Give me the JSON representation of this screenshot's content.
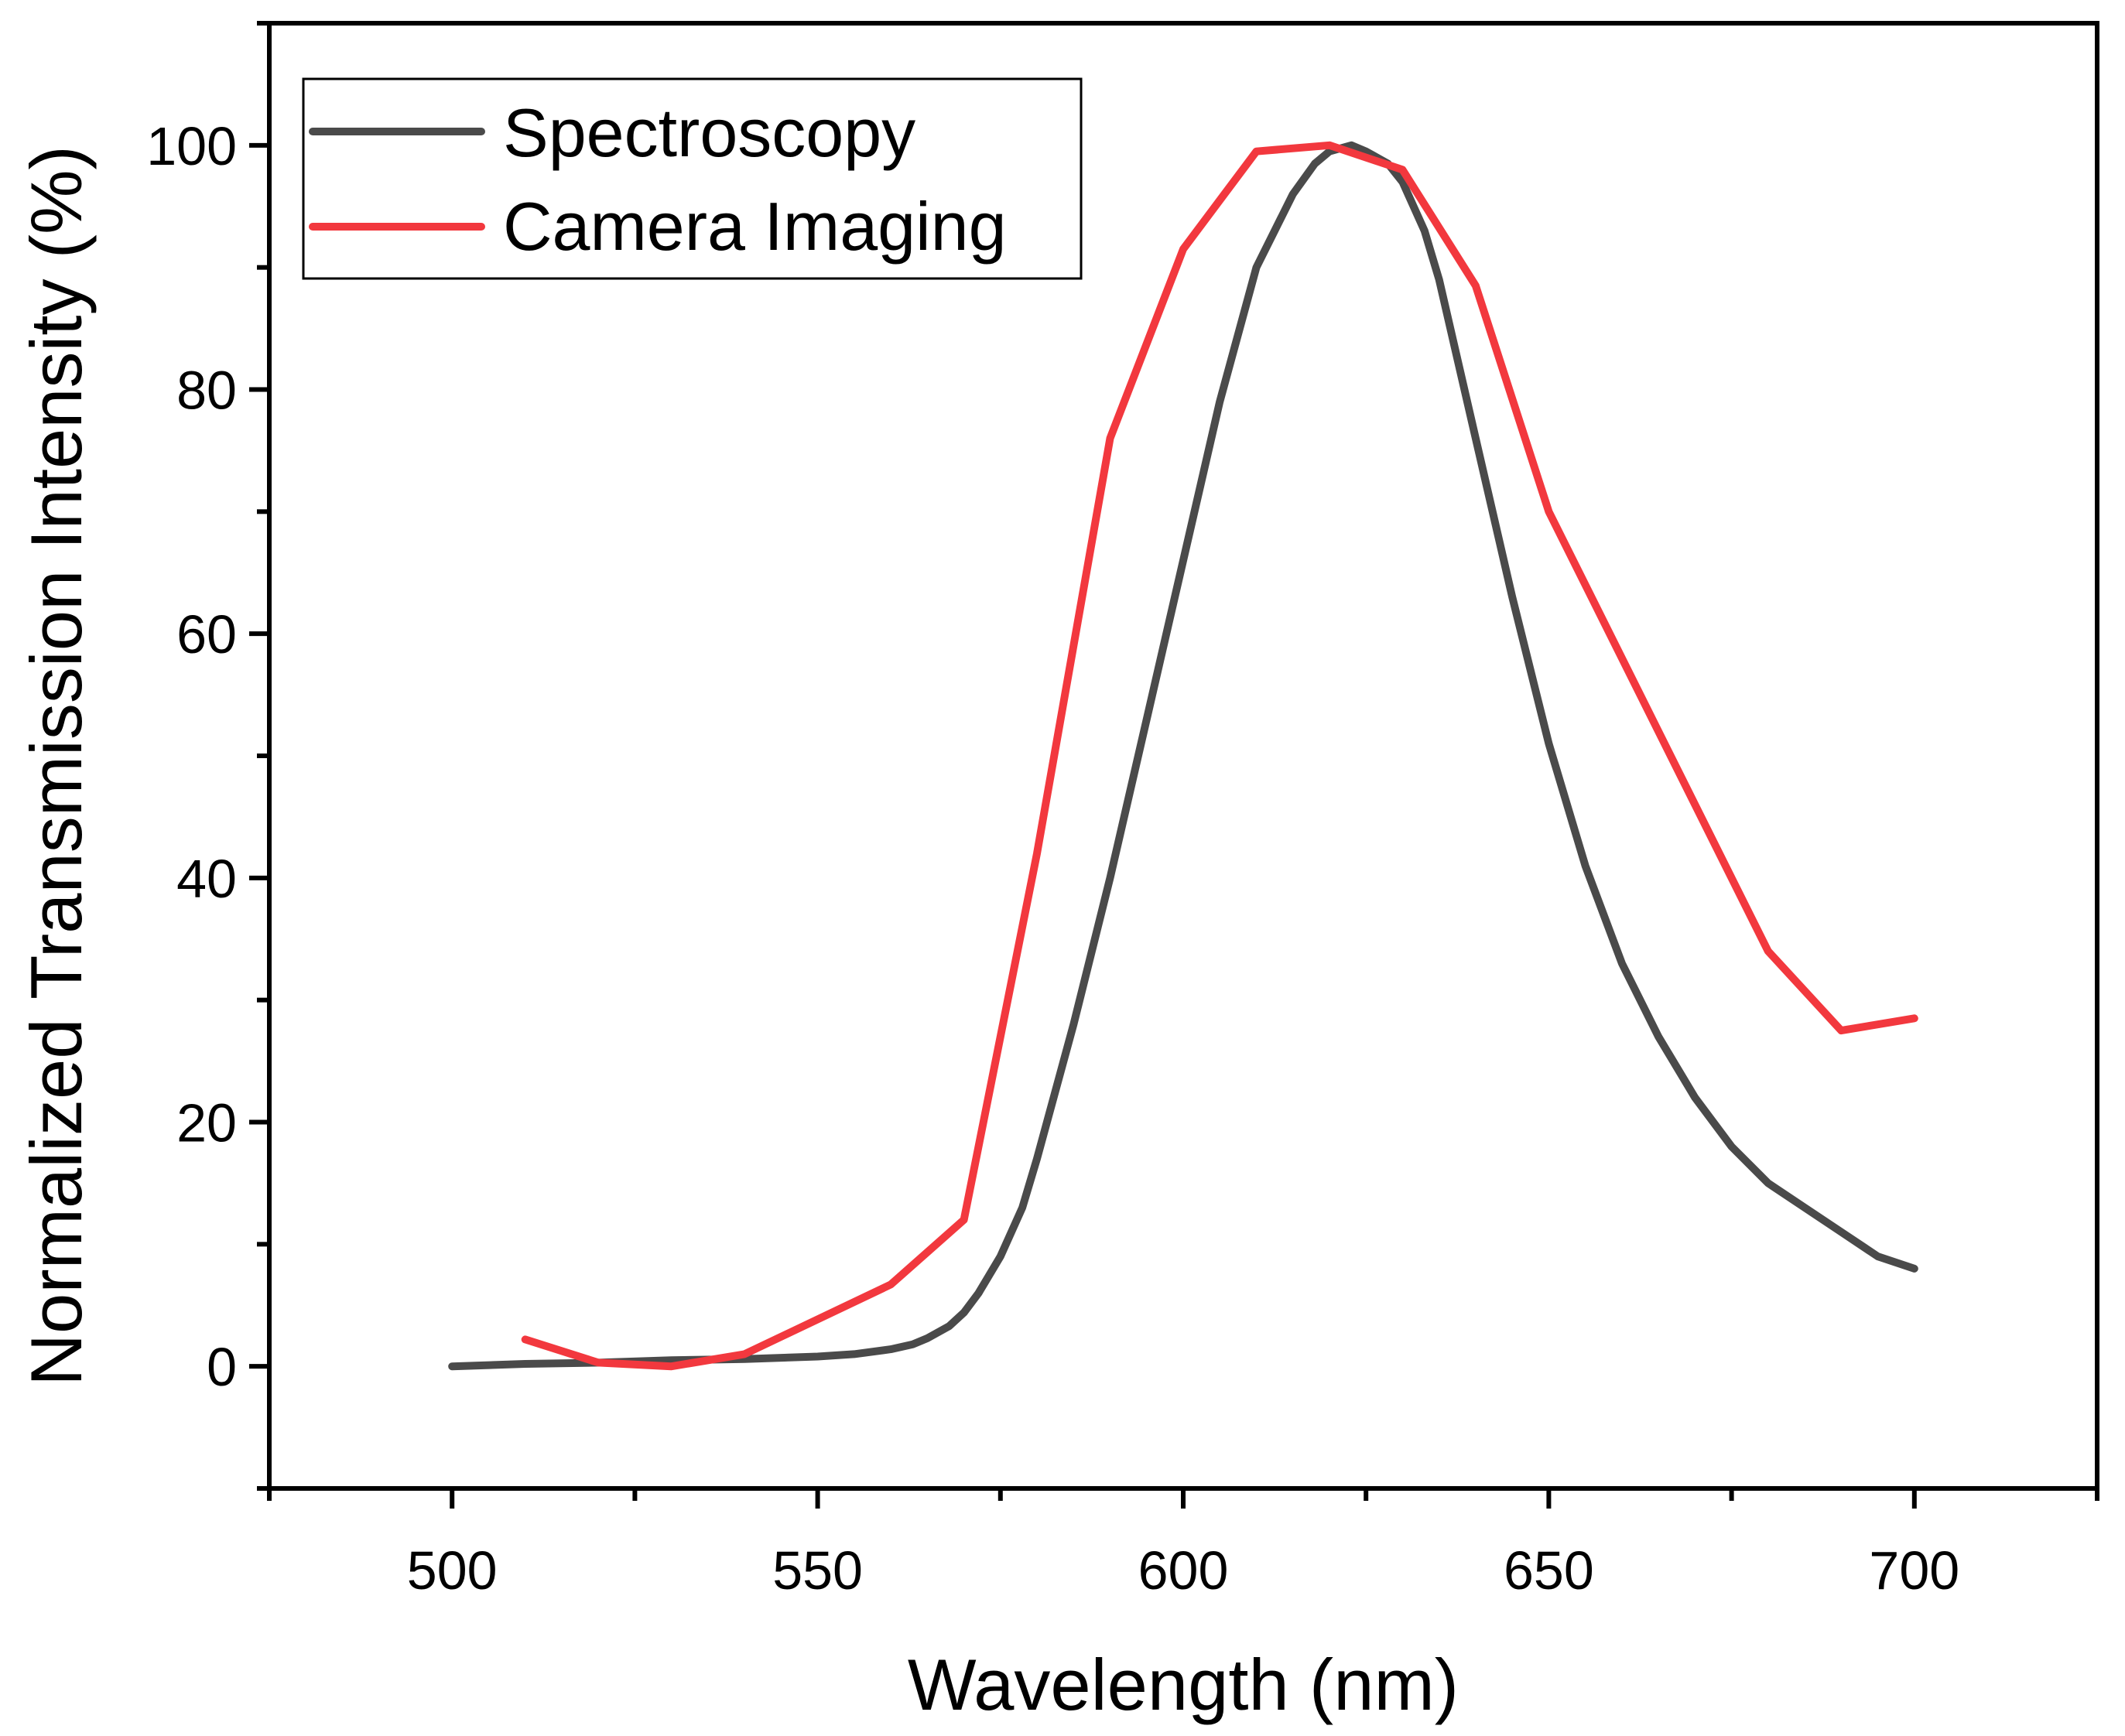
{
  "chart_data": {
    "type": "line",
    "xlabel": "Wavelength (nm)",
    "ylabel": "Normalized Transmission Intensity (%)",
    "xlim": [
      475,
      725
    ],
    "ylim": [
      -10,
      110
    ],
    "x_ticks": [
      500,
      550,
      600,
      650,
      700
    ],
    "x_tick_labels": [
      "500",
      "550",
      "600",
      "650",
      "700"
    ],
    "x_minor_ticks": [
      475,
      525,
      575,
      625,
      675,
      725
    ],
    "y_ticks": [
      0,
      20,
      40,
      60,
      80,
      100
    ],
    "y_tick_labels": [
      "0",
      "20",
      "40",
      "60",
      "80",
      "100"
    ],
    "y_minor_ticks": [
      -10,
      10,
      30,
      50,
      70,
      90,
      110
    ],
    "legend_position": "top-left",
    "series": [
      {
        "name": "Spectroscopy",
        "color": "#4a4a4a",
        "x": [
          500,
          510,
          520,
          530,
          540,
          550,
          555,
          560,
          563,
          565,
          568,
          570,
          572,
          575,
          578,
          580,
          585,
          590,
          595,
          600,
          605,
          610,
          615,
          618,
          620,
          623,
          625,
          628,
          630,
          633,
          635,
          640,
          645,
          650,
          655,
          660,
          665,
          670,
          675,
          680,
          685,
          690,
          695,
          700
        ],
        "y": [
          0,
          0.2,
          0.3,
          0.5,
          0.6,
          0.8,
          1.0,
          1.4,
          1.8,
          2.3,
          3.3,
          4.4,
          6,
          9,
          13,
          17,
          28,
          40,
          53,
          66,
          79,
          90,
          96,
          98.5,
          99.5,
          100,
          99.5,
          98.5,
          97,
          93,
          89,
          76,
          63,
          51,
          41,
          33,
          27,
          22,
          18,
          15,
          13,
          11,
          9,
          8
        ]
      },
      {
        "name": "Camera Imaging",
        "color": "#f2383e",
        "x": [
          510,
          520,
          530,
          540,
          560,
          570,
          580,
          590,
          600,
          610,
          620,
          630,
          640,
          650,
          680,
          690,
          700
        ],
        "y": [
          2.2,
          0.3,
          0,
          1,
          6.7,
          12,
          42,
          76,
          91.5,
          99.5,
          100,
          98,
          88.5,
          70,
          34,
          27.5,
          28.5
        ]
      }
    ]
  }
}
